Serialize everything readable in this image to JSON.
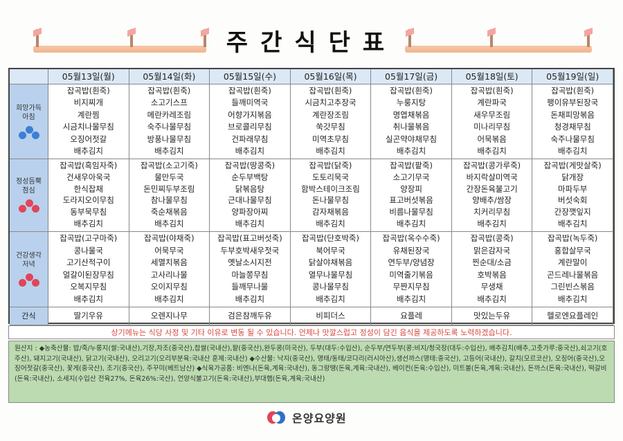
{
  "title": "주간식단표",
  "days": [
    "05월13일(월)",
    "05월14일(화)",
    "05월15일(수)",
    "05월16일(목)",
    "05월17일(금)",
    "05월18일(토)",
    "05월19일(일)"
  ],
  "meals": [
    {
      "label_lines": [
        "희망가득",
        "아침"
      ],
      "flower_color": "#3b7fd6",
      "days": [
        [
          "잡곡밥(흰죽)",
          "비지찌개",
          "계란찜",
          "시금치나물무침",
          "오징어젓갈",
          "배추김치"
        ],
        [
          "잡곡밥(흰죽)",
          "소고기스프",
          "메란카레조림",
          "숙주나물무침",
          "방풍나물무침",
          "배추김치"
        ],
        [
          "잡곡밥(흰죽)",
          "들깨미역국",
          "어향가지볶음",
          "브로콜리무침",
          "건파래무침",
          "배추김치"
        ],
        [
          "잡곡밥(흰죽)",
          "시금치고추장국",
          "계란장조림",
          "쑥갓무침",
          "미역초무침",
          "배추김치"
        ],
        [
          "잡곡밥(흰죽)",
          "누룽지탕",
          "명엽채볶음",
          "취나물볶음",
          "실곤약야채무침",
          "배추김치"
        ],
        [
          "잡곡밥(흰죽)",
          "계란파국",
          "새우무조림",
          "미나리무침",
          "어묵볶음",
          "배추김치"
        ],
        [
          "잡곡밥(흰죽)",
          "팽이유부된장국",
          "돈채피망볶음",
          "청경채무침",
          "숙주나물무침",
          "배추김치"
        ]
      ]
    },
    {
      "label_lines": [
        "정성듬뿍",
        "점심"
      ],
      "flower_color": "#e0455a",
      "days": [
        [
          "잡곡밥(흑임자죽)",
          "건새우아욱국",
          "한식잡채",
          "도라지오이무침",
          "동부묵무침",
          "배추김치"
        ],
        [
          "잡곡밥(소고기죽)",
          "물만두국",
          "돈민찌두부조림",
          "참나물무침",
          "죽순채볶음",
          "배추김치"
        ],
        [
          "잡곡밥(땅콩죽)",
          "순두부백탕",
          "닭볶음탕",
          "근대나물무침",
          "양파장아찌",
          "배추김치"
        ],
        [
          "잡곡밥(닭죽)",
          "도토리묵국",
          "함박스테이크조림",
          "돈나물무침",
          "감자채볶음",
          "배추김치"
        ],
        [
          "잡곡밥(팥죽)",
          "소고기무국",
          "양장피",
          "표고버섯볶음",
          "비름나물무침",
          "배추김치"
        ],
        [
          "잡곡밥(콩가루죽)",
          "바지락살미역국",
          "간장돈육불고기",
          "양배추/쌈장",
          "치커리무침",
          "배추김치"
        ],
        [
          "잡곡밥(게맛살죽)",
          "닭개장",
          "마파두부",
          "버섯숙회",
          "간장깻잎지",
          "배추김치"
        ]
      ]
    },
    {
      "label_lines": [
        "건강생각",
        "저녁"
      ],
      "flower_color": "#e0455a",
      "days": [
        [
          "잡곡밥(고구마죽)",
          "콩나물국",
          "고기산적구이",
          "얼갈이된장무침",
          "오복지무침",
          "배추김치"
        ],
        [
          "잡곡밥(야채죽)",
          "어묵무국",
          "세멸치볶음",
          "고사리나물",
          "오이지무침",
          "배추김치"
        ],
        [
          "잡곡밥(표고버섯죽)",
          "두부호박새우젓국",
          "옛날소시지전",
          "마늘쫑무침",
          "들깨무나물",
          "배추김치"
        ],
        [
          "잡곡밥(단호박죽)",
          "북어무국",
          "닭살야채볶음",
          "열무나물무침",
          "콩나물무침",
          "배추김치"
        ],
        [
          "잡곡밥(옥수수죽)",
          "유채된장국",
          "연두부/양념장",
          "미역줄기볶음",
          "무짠지무침",
          "배추김치"
        ],
        [
          "잡곡밥(콩죽)",
          "맑은감자국",
          "찐순대/소금",
          "호박볶음",
          "무생채",
          "배추김치"
        ],
        [
          "잡곡밥(녹두죽)",
          "홍합살무국",
          "계란말이",
          "곤드레나물볶음",
          "그린빈스볶음",
          "배추김치"
        ]
      ]
    }
  ],
  "snack_label": "간식",
  "snacks": [
    "딸기우유",
    "오렌지나무",
    "검은참깨두유",
    "비피더스",
    "요플레",
    "맛있는두유",
    "헬로엔요플레인"
  ],
  "notice": "상기메뉴는 식당 사정 및 기타 이유로 변동 될 수 있습니다. 언제나 맛깔스럽고 정성이 담긴 음식을 제공하도록 노력하겠습니다.",
  "origin_text": "원산지 : ◆농축산물: 밥/죽/누룽지(쌀:국내산),기장,차조(중국산),찹쌀(국내산),팥(중국산),완두콩(미국산), 두부(대두:수입산), 순두부/연두부(콩:비지/청국장(대두:수입산), 배추김치(배추,고춧가루:중국산),쇠고기(호주산), 돼지고기(국내산), 닭고기(국내산), 오리고기(오리부분육:국내산 훈제:국내산) ◆수산물: 낙지(중국산), 명태/동태/코다리(러시아산),생선까스(명태:중국산), 고등어(국내산), 갈치(모르코산), 오징어(중국산),오징어젓갈(중국산), 꽃게(중국산), 조기(중국산), 주꾸미(베트남산) ◆식육가공품: 비엔나(돈육,계육:국내산), 동그랑땡(돈육,계육:국내산), 베이컨(돈육:수입산), 미트볼(돈육,계육:국내산), 돈까스(돈육:국내산), 떡갈비(돈육:국내산), 소세지(수입산 전육27%, 돈육26%:국산), 언양식불고기(돈육:국내산),부대햄(돈육,계육:국내산)",
  "logo_text": "온양요양원"
}
